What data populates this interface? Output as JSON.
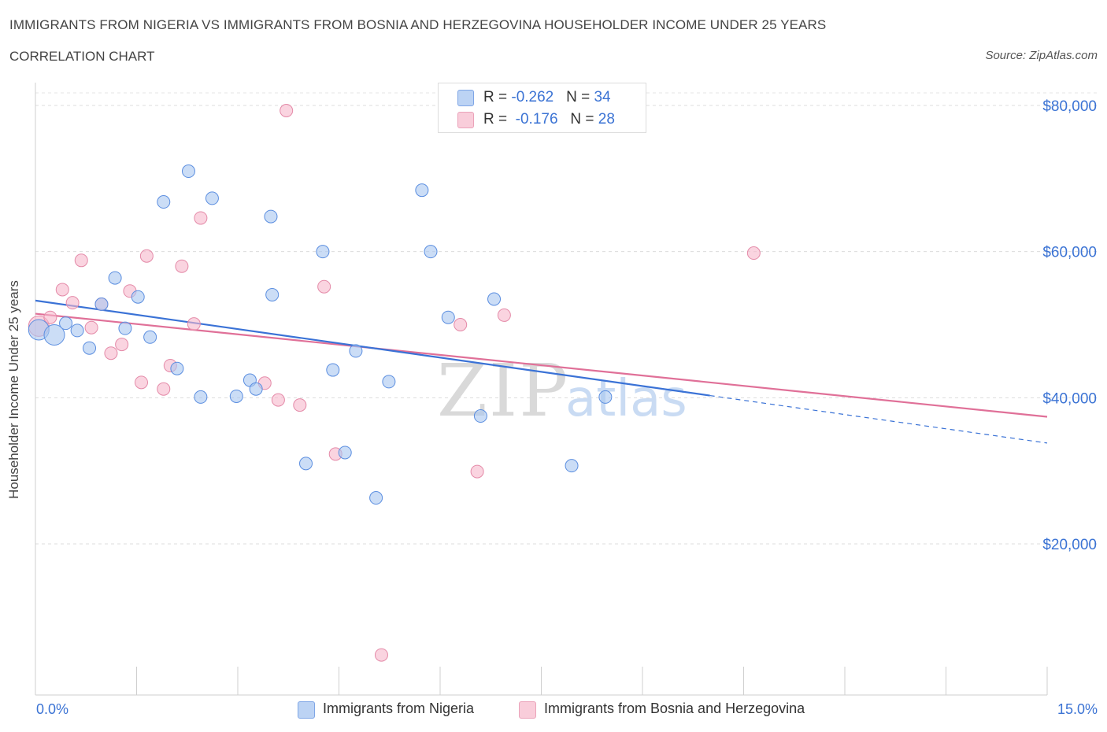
{
  "header": {
    "title": "IMMIGRANTS FROM NIGERIA VS IMMIGRANTS FROM BOSNIA AND HERZEGOVINA HOUSEHOLDER INCOME UNDER 25 YEARS",
    "subtitle": "CORRELATION CHART",
    "source": "Source: ZipAtlas.com"
  },
  "watermark": {
    "zip": "ZIP",
    "atlas": "atlas"
  },
  "legend_top": {
    "rows": [
      {
        "r_label": "R = ",
        "r_value": "-0.262",
        "n_label": "N = ",
        "n_value": "34",
        "color": "#a9c6f0"
      },
      {
        "r_label": "R = ",
        "r_value": "-0.176",
        "n_label": "N = ",
        "n_value": "28",
        "color": "#f6b8cb"
      }
    ]
  },
  "legend_bottom": {
    "items": [
      {
        "label": "Immigrants from Nigeria",
        "color": "#a9c6f0"
      },
      {
        "label": "Immigrants from Bosnia and Herzegovina",
        "color": "#f6b8cb"
      }
    ]
  },
  "axes": {
    "x_min_label": "0.0%",
    "x_max_label": "15.0%",
    "y_tick_labels": [
      "$80,000",
      "$60,000",
      "$40,000",
      "$20,000"
    ]
  },
  "chart_data": {
    "type": "scatter",
    "title": "IMMIGRANTS FROM NIGERIA VS IMMIGRANTS FROM BOSNIA AND HERZEGOVINA HOUSEHOLDER INCOME UNDER 25 YEARS",
    "xlabel": "",
    "ylabel": "Householder Income Under 25 years",
    "xlim": [
      0,
      15
    ],
    "ylim": [
      0,
      80000
    ],
    "y_ticks": [
      20000,
      40000,
      60000,
      80000
    ],
    "grid": true,
    "legend": "bottom",
    "colors": {
      "nigeria": "#4a7fd8",
      "bosnia": "#e07098"
    },
    "series": [
      {
        "name": "Immigrants from Nigeria",
        "color": "#a9c6f0",
        "stroke": "#5b8ee0",
        "r": -0.262,
        "n": 34,
        "trend": {
          "x0": 0.0,
          "y0": 53300,
          "x1": 10.0,
          "y1": 40300,
          "dash_to_x": 15.0,
          "dash_to_y": 33800
        },
        "points": [
          {
            "x": 0.05,
            "y": 49300,
            "size": "large"
          },
          {
            "x": 0.28,
            "y": 48600,
            "size": "large"
          },
          {
            "x": 0.45,
            "y": 50200
          },
          {
            "x": 0.62,
            "y": 49200
          },
          {
            "x": 0.8,
            "y": 46800
          },
          {
            "x": 0.98,
            "y": 52800
          },
          {
            "x": 1.18,
            "y": 56400
          },
          {
            "x": 1.33,
            "y": 49500
          },
          {
            "x": 1.52,
            "y": 53800
          },
          {
            "x": 1.7,
            "y": 48300
          },
          {
            "x": 1.9,
            "y": 66800
          },
          {
            "x": 2.1,
            "y": 44000
          },
          {
            "x": 2.27,
            "y": 71000
          },
          {
            "x": 2.45,
            "y": 40100
          },
          {
            "x": 2.62,
            "y": 67300
          },
          {
            "x": 2.98,
            "y": 40200
          },
          {
            "x": 3.18,
            "y": 42400
          },
          {
            "x": 3.27,
            "y": 41200
          },
          {
            "x": 3.49,
            "y": 64800
          },
          {
            "x": 3.51,
            "y": 54100
          },
          {
            "x": 4.01,
            "y": 31000
          },
          {
            "x": 4.26,
            "y": 60000
          },
          {
            "x": 4.41,
            "y": 43800
          },
          {
            "x": 4.59,
            "y": 32500
          },
          {
            "x": 4.75,
            "y": 46400
          },
          {
            "x": 5.05,
            "y": 26300
          },
          {
            "x": 5.24,
            "y": 42200
          },
          {
            "x": 5.73,
            "y": 68400
          },
          {
            "x": 5.86,
            "y": 60000
          },
          {
            "x": 6.12,
            "y": 51000
          },
          {
            "x": 6.6,
            "y": 37500
          },
          {
            "x": 6.8,
            "y": 53500
          },
          {
            "x": 7.95,
            "y": 30700
          },
          {
            "x": 8.45,
            "y": 40100
          }
        ]
      },
      {
        "name": "Immigrants from Bosnia and Herzegovina",
        "color": "#f6b8cb",
        "stroke": "#e48aa8",
        "r": -0.176,
        "n": 28,
        "trend": {
          "x0": 0.0,
          "y0": 51500,
          "x1": 15.0,
          "y1": 37400
        },
        "points": [
          {
            "x": 0.05,
            "y": 49800,
            "size": "large"
          },
          {
            "x": 0.22,
            "y": 51000
          },
          {
            "x": 0.4,
            "y": 54800
          },
          {
            "x": 0.55,
            "y": 53000
          },
          {
            "x": 0.68,
            "y": 58800
          },
          {
            "x": 0.83,
            "y": 49600
          },
          {
            "x": 0.98,
            "y": 52800
          },
          {
            "x": 1.12,
            "y": 46100
          },
          {
            "x": 1.28,
            "y": 47300
          },
          {
            "x": 1.4,
            "y": 54600
          },
          {
            "x": 1.57,
            "y": 42100
          },
          {
            "x": 1.65,
            "y": 59400
          },
          {
            "x": 1.9,
            "y": 41200
          },
          {
            "x": 2.0,
            "y": 44400
          },
          {
            "x": 2.17,
            "y": 58000
          },
          {
            "x": 2.35,
            "y": 50100
          },
          {
            "x": 2.45,
            "y": 64600
          },
          {
            "x": 3.4,
            "y": 42000
          },
          {
            "x": 3.6,
            "y": 39700
          },
          {
            "x": 3.72,
            "y": 79300
          },
          {
            "x": 3.92,
            "y": 39000
          },
          {
            "x": 4.28,
            "y": 55200
          },
          {
            "x": 4.45,
            "y": 32300
          },
          {
            "x": 5.13,
            "y": 4800
          },
          {
            "x": 6.3,
            "y": 50000
          },
          {
            "x": 6.55,
            "y": 29900
          },
          {
            "x": 6.95,
            "y": 51300
          },
          {
            "x": 10.65,
            "y": 59800
          }
        ]
      }
    ]
  }
}
